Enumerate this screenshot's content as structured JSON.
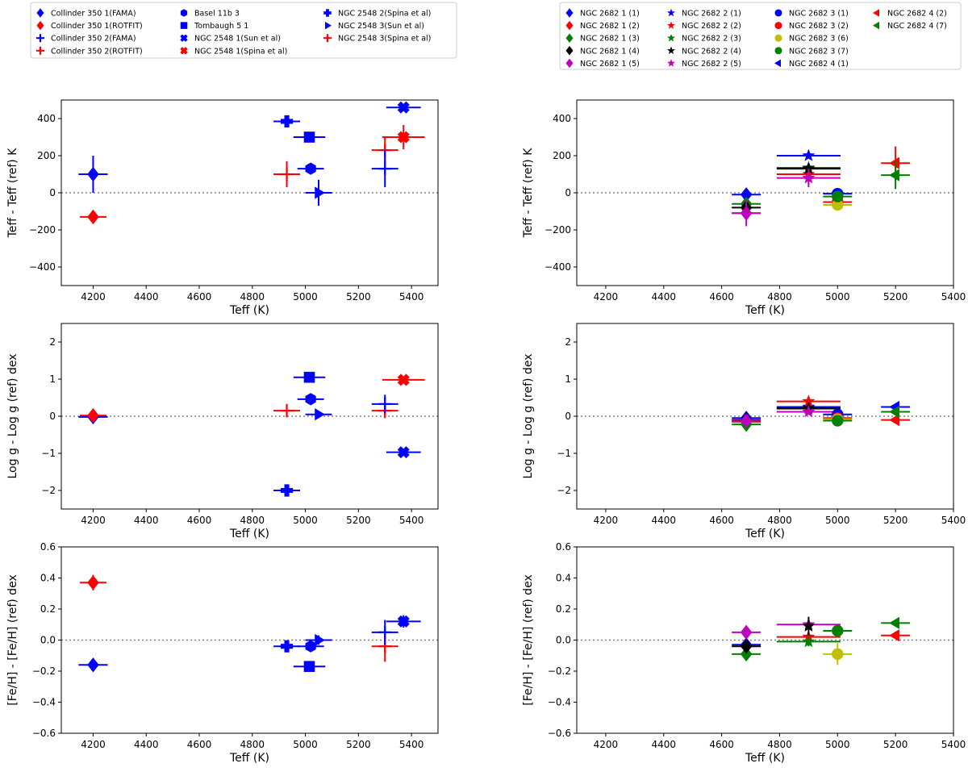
{
  "figure": {
    "xlabel": "Teff (K)",
    "colors": {
      "blue": "#0000ff",
      "red": "#ff0000",
      "green": "#008000",
      "black": "#000000",
      "magenta": "#bf00bf",
      "yellow": "#bfbf00",
      "zero_line": "#808080"
    }
  },
  "legends": {
    "left": [
      {
        "label": "Collinder 350 1(FAMA)",
        "marker": "diamond",
        "color": "blue"
      },
      {
        "label": "Collinder 350 1(ROTFIT)",
        "marker": "diamond",
        "color": "red"
      },
      {
        "label": "Collinder 350 2(FAMA)",
        "marker": "tri_up",
        "color": "blue"
      },
      {
        "label": "Collinder 350 2(ROTFIT)",
        "marker": "tri_up",
        "color": "red"
      },
      {
        "label": "Basel 11b 3",
        "marker": "hexagon",
        "color": "blue"
      },
      {
        "label": "Tombaugh 5 1",
        "marker": "square",
        "color": "blue"
      },
      {
        "label": "NGC 2548 1(Sun et al)",
        "marker": "xfilled",
        "color": "blue"
      },
      {
        "label": "NGC 2548 1(Spina et al)",
        "marker": "xfilled",
        "color": "red"
      },
      {
        "label": "NGC 2548 2(Spina et al)",
        "marker": "plusfilled",
        "color": "blue"
      },
      {
        "label": "NGC 2548 3(Sun et al)",
        "marker": "tri_right",
        "color": "blue"
      },
      {
        "label": "NGC 2548 3(Spina et al)",
        "marker": "tri_up",
        "color": "red"
      }
    ],
    "right": [
      {
        "label": "NGC 2682 1 (1)",
        "marker": "diamond",
        "color": "blue"
      },
      {
        "label": "NGC 2682 1 (2)",
        "marker": "diamond",
        "color": "red"
      },
      {
        "label": "NGC 2682 1 (3)",
        "marker": "diamond",
        "color": "green"
      },
      {
        "label": "NGC 2682 1 (4)",
        "marker": "diamond",
        "color": "black"
      },
      {
        "label": "NGC 2682 1 (5)",
        "marker": "diamond",
        "color": "magenta"
      },
      {
        "label": "NGC 2682 2 (1)",
        "marker": "star",
        "color": "blue"
      },
      {
        "label": "NGC 2682 2 (2)",
        "marker": "star",
        "color": "red"
      },
      {
        "label": "NGC 2682 2 (3)",
        "marker": "star",
        "color": "green"
      },
      {
        "label": "NGC 2682 2 (4)",
        "marker": "star",
        "color": "black"
      },
      {
        "label": "NGC 2682 2 (5)",
        "marker": "star",
        "color": "magenta"
      },
      {
        "label": "NGC 2682 3 (1)",
        "marker": "circle",
        "color": "blue"
      },
      {
        "label": "NGC 2682 3 (2)",
        "marker": "circle",
        "color": "red"
      },
      {
        "label": "NGC 2682 3 (6)",
        "marker": "circle",
        "color": "yellow"
      },
      {
        "label": "NGC 2682 3 (7)",
        "marker": "circle",
        "color": "green"
      },
      {
        "label": "NGC 2682 4 (1)",
        "marker": "tri_left",
        "color": "blue"
      },
      {
        "label": "NGC 2682 4 (2)",
        "marker": "tri_left",
        "color": "red"
      },
      {
        "label": "NGC 2682 4 (7)",
        "marker": "tri_left",
        "color": "green"
      }
    ]
  },
  "chart_data": [
    {
      "type": "scatter",
      "panel": "teff-left",
      "title": "",
      "xlabel": "Teff (K)",
      "ylabel": "Teff - Teff (ref) K",
      "xlim": [
        4080,
        5500
      ],
      "ylim": [
        -500,
        500
      ],
      "xticks": [
        "4200",
        "4400",
        "4600",
        "4800",
        "5000",
        "5200",
        "5400"
      ],
      "yticks": [
        "−400",
        "−200",
        "0",
        "200",
        "400"
      ],
      "ytick_values": [
        -400,
        -200,
        0,
        200,
        400
      ],
      "points": [
        {
          "x": 4200,
          "y": 100,
          "xerr": 55,
          "yerr": 100,
          "marker": "diamond",
          "color": "blue"
        },
        {
          "x": 4200,
          "y": -130,
          "xerr": 50,
          "yerr": 30,
          "marker": "diamond",
          "color": "red"
        },
        {
          "x": 4930,
          "y": 385,
          "xerr": 50,
          "yerr": 20,
          "marker": "plusfilled",
          "color": "blue"
        },
        {
          "x": 4930,
          "y": 100,
          "xerr": 50,
          "yerr": 70,
          "marker": "tri_up",
          "color": "red"
        },
        {
          "x": 5020,
          "y": 130,
          "xerr": 50,
          "yerr": 0,
          "marker": "hexagon",
          "color": "blue"
        },
        {
          "x": 5015,
          "y": 300,
          "xerr": 60,
          "yerr": 0,
          "marker": "square",
          "color": "blue"
        },
        {
          "x": 5050,
          "y": 0,
          "xerr": 50,
          "yerr": 70,
          "marker": "tri_right",
          "color": "blue"
        },
        {
          "x": 5300,
          "y": 230,
          "xerr": 50,
          "yerr": 70,
          "marker": "tri_up",
          "color": "red"
        },
        {
          "x": 5300,
          "y": 130,
          "xerr": 50,
          "yerr": 100,
          "marker": "tri_up",
          "color": "blue"
        },
        {
          "x": 5370,
          "y": 460,
          "xerr": 65,
          "yerr": 0,
          "marker": "xfilled",
          "color": "blue"
        },
        {
          "x": 5370,
          "y": 300,
          "xerr": 80,
          "yerr": 65,
          "marker": "xfilled",
          "color": "red"
        }
      ]
    },
    {
      "type": "scatter",
      "panel": "logg-left",
      "title": "",
      "xlabel": "Teff (K)",
      "ylabel": "Log g - Log g (ref) dex",
      "xlim": [
        4080,
        5500
      ],
      "ylim": [
        -2.5,
        2.5
      ],
      "xticks": [
        "4200",
        "4400",
        "4600",
        "4800",
        "5000",
        "5200",
        "5400"
      ],
      "yticks": [
        "−2",
        "−1",
        "0",
        "1",
        "2"
      ],
      "ytick_values": [
        -2,
        -1,
        0,
        1,
        2
      ],
      "points": [
        {
          "x": 4200,
          "y": -0.02,
          "xerr": 55,
          "yerr": 0.12,
          "marker": "diamond",
          "color": "blue"
        },
        {
          "x": 4200,
          "y": 0.02,
          "xerr": 50,
          "yerr": 0.15,
          "marker": "diamond",
          "color": "red"
        },
        {
          "x": 4930,
          "y": -2.0,
          "xerr": 50,
          "yerr": 0.05,
          "marker": "plusfilled",
          "color": "blue"
        },
        {
          "x": 4930,
          "y": 0.15,
          "xerr": 50,
          "yerr": 0.18,
          "marker": "tri_up",
          "color": "red"
        },
        {
          "x": 5020,
          "y": 0.46,
          "xerr": 50,
          "yerr": 0,
          "marker": "hexagon",
          "color": "blue"
        },
        {
          "x": 5015,
          "y": 1.05,
          "xerr": 60,
          "yerr": 0,
          "marker": "square",
          "color": "blue"
        },
        {
          "x": 5050,
          "y": 0.05,
          "xerr": 50,
          "yerr": 0.05,
          "marker": "tri_right",
          "color": "blue"
        },
        {
          "x": 5300,
          "y": 0.15,
          "xerr": 50,
          "yerr": 0.2,
          "marker": "tri_up",
          "color": "red"
        },
        {
          "x": 5300,
          "y": 0.33,
          "xerr": 50,
          "yerr": 0.25,
          "marker": "tri_up",
          "color": "blue"
        },
        {
          "x": 5370,
          "y": -0.97,
          "xerr": 65,
          "yerr": 0.05,
          "marker": "xfilled",
          "color": "blue"
        },
        {
          "x": 5370,
          "y": 0.98,
          "xerr": 80,
          "yerr": 0.08,
          "marker": "xfilled",
          "color": "red"
        }
      ]
    },
    {
      "type": "scatter",
      "panel": "feh-left",
      "title": "",
      "xlabel": "Teff (K)",
      "ylabel": "[Fe/H] - [Fe/H] (ref) dex",
      "xlim": [
        4080,
        5500
      ],
      "ylim": [
        -0.6,
        0.6
      ],
      "xticks": [
        "4200",
        "4400",
        "4600",
        "4800",
        "5000",
        "5200",
        "5400"
      ],
      "yticks": [
        "−0.6",
        "−0.4",
        "−0.2",
        "0.0",
        "0.2",
        "0.4",
        "0.6"
      ],
      "ytick_values": [
        -0.6,
        -0.4,
        -0.2,
        0,
        0.2,
        0.4,
        0.6
      ],
      "points": [
        {
          "x": 4200,
          "y": -0.16,
          "xerr": 55,
          "yerr": 0.02,
          "marker": "diamond",
          "color": "blue"
        },
        {
          "x": 4200,
          "y": 0.37,
          "xerr": 50,
          "yerr": 0.05,
          "marker": "diamond",
          "color": "red"
        },
        {
          "x": 4930,
          "y": -0.04,
          "xerr": 50,
          "yerr": 0.03,
          "marker": "plusfilled",
          "color": "blue"
        },
        {
          "x": 5020,
          "y": -0.04,
          "xerr": 50,
          "yerr": 0,
          "marker": "hexagon",
          "color": "blue"
        },
        {
          "x": 5015,
          "y": -0.17,
          "xerr": 60,
          "yerr": 0,
          "marker": "square",
          "color": "blue"
        },
        {
          "x": 5050,
          "y": 0.0,
          "xerr": 50,
          "yerr": 0.03,
          "marker": "tri_right",
          "color": "blue"
        },
        {
          "x": 5300,
          "y": -0.04,
          "xerr": 50,
          "yerr": 0.1,
          "marker": "tri_up",
          "color": "red"
        },
        {
          "x": 5300,
          "y": 0.05,
          "xerr": 50,
          "yerr": 0.08,
          "marker": "tri_up",
          "color": "blue"
        },
        {
          "x": 5370,
          "y": 0.12,
          "xerr": 65,
          "yerr": 0.04,
          "marker": "xfilled",
          "color": "blue"
        }
      ]
    },
    {
      "type": "scatter",
      "panel": "teff-right",
      "title": "",
      "xlabel": "Teff (K)",
      "ylabel": "Teff - Teff (ref) K",
      "xlim": [
        4100,
        5400
      ],
      "ylim": [
        -500,
        500
      ],
      "xticks": [
        "4200",
        "4400",
        "4600",
        "4800",
        "5000",
        "5200",
        "5400"
      ],
      "yticks": [
        "−400",
        "−200",
        "0",
        "200",
        "400"
      ],
      "ytick_values": [
        -400,
        -200,
        0,
        200,
        400
      ],
      "points": [
        {
          "x": 4685,
          "y": -10,
          "xerr": 50,
          "yerr": 0,
          "marker": "diamond",
          "color": "blue"
        },
        {
          "x": 4685,
          "y": -110,
          "xerr": 50,
          "yerr": 0,
          "marker": "diamond",
          "color": "red"
        },
        {
          "x": 4685,
          "y": -60,
          "xerr": 50,
          "yerr": 0,
          "marker": "diamond",
          "color": "green"
        },
        {
          "x": 4685,
          "y": -80,
          "xerr": 50,
          "yerr": 0,
          "marker": "diamond",
          "color": "black"
        },
        {
          "x": 4685,
          "y": -110,
          "xerr": 50,
          "yerr": 70,
          "marker": "diamond",
          "color": "magenta"
        },
        {
          "x": 4900,
          "y": 200,
          "xerr": 110,
          "yerr": 0,
          "marker": "star",
          "color": "blue"
        },
        {
          "x": 4900,
          "y": 100,
          "xerr": 110,
          "yerr": 50,
          "marker": "star",
          "color": "red"
        },
        {
          "x": 4900,
          "y": 135,
          "xerr": 110,
          "yerr": 0,
          "marker": "star",
          "color": "green"
        },
        {
          "x": 4900,
          "y": 130,
          "xerr": 110,
          "yerr": 0,
          "marker": "star",
          "color": "black"
        },
        {
          "x": 4900,
          "y": 80,
          "xerr": 110,
          "yerr": 50,
          "marker": "star",
          "color": "magenta"
        },
        {
          "x": 5000,
          "y": -5,
          "xerr": 50,
          "yerr": 0,
          "marker": "circle",
          "color": "blue"
        },
        {
          "x": 5000,
          "y": -50,
          "xerr": 50,
          "yerr": 0,
          "marker": "circle",
          "color": "red"
        },
        {
          "x": 5000,
          "y": -65,
          "xerr": 50,
          "yerr": 0,
          "marker": "circle",
          "color": "yellow"
        },
        {
          "x": 5000,
          "y": -20,
          "xerr": 50,
          "yerr": 0,
          "marker": "circle",
          "color": "green"
        },
        {
          "x": 5200,
          "y": 160,
          "xerr": 50,
          "yerr": 90,
          "marker": "tri_left",
          "color": "red"
        },
        {
          "x": 5200,
          "y": 95,
          "xerr": 50,
          "yerr": 75,
          "marker": "tri_left",
          "color": "green"
        }
      ]
    },
    {
      "type": "scatter",
      "panel": "logg-right",
      "title": "",
      "xlabel": "Teff (K)",
      "ylabel": "Log g - Log g (ref) dex",
      "xlim": [
        4100,
        5400
      ],
      "ylim": [
        -2.5,
        2.5
      ],
      "xticks": [
        "4200",
        "4400",
        "4600",
        "4800",
        "5000",
        "5200",
        "5400"
      ],
      "yticks": [
        "−2",
        "−1",
        "0",
        "1",
        "2"
      ],
      "ytick_values": [
        -2,
        -1,
        0,
        1,
        2
      ],
      "points": [
        {
          "x": 4685,
          "y": -0.05,
          "xerr": 50,
          "yerr": 0,
          "marker": "diamond",
          "color": "blue"
        },
        {
          "x": 4685,
          "y": -0.15,
          "xerr": 50,
          "yerr": 0,
          "marker": "diamond",
          "color": "red"
        },
        {
          "x": 4685,
          "y": -0.22,
          "xerr": 50,
          "yerr": 0,
          "marker": "diamond",
          "color": "green"
        },
        {
          "x": 4685,
          "y": -0.1,
          "xerr": 50,
          "yerr": 0,
          "marker": "diamond",
          "color": "black"
        },
        {
          "x": 4685,
          "y": -0.12,
          "xerr": 50,
          "yerr": 0,
          "marker": "diamond",
          "color": "magenta"
        },
        {
          "x": 4900,
          "y": 0.25,
          "xerr": 110,
          "yerr": 0,
          "marker": "star",
          "color": "blue"
        },
        {
          "x": 4900,
          "y": 0.4,
          "xerr": 110,
          "yerr": 0,
          "marker": "star",
          "color": "red"
        },
        {
          "x": 4900,
          "y": 0.2,
          "xerr": 110,
          "yerr": 0,
          "marker": "star",
          "color": "green"
        },
        {
          "x": 4900,
          "y": 0.22,
          "xerr": 110,
          "yerr": 0,
          "marker": "star",
          "color": "black"
        },
        {
          "x": 4900,
          "y": 0.12,
          "xerr": 110,
          "yerr": 0,
          "marker": "star",
          "color": "magenta"
        },
        {
          "x": 5000,
          "y": 0.05,
          "xerr": 50,
          "yerr": 0,
          "marker": "circle",
          "color": "blue"
        },
        {
          "x": 5000,
          "y": -0.05,
          "xerr": 50,
          "yerr": 0,
          "marker": "circle",
          "color": "red"
        },
        {
          "x": 5000,
          "y": -0.08,
          "xerr": 50,
          "yerr": 0,
          "marker": "circle",
          "color": "yellow"
        },
        {
          "x": 5000,
          "y": -0.12,
          "xerr": 50,
          "yerr": 0,
          "marker": "circle",
          "color": "green"
        },
        {
          "x": 5200,
          "y": 0.25,
          "xerr": 50,
          "yerr": 0,
          "marker": "tri_left",
          "color": "blue"
        },
        {
          "x": 5200,
          "y": -0.1,
          "xerr": 50,
          "yerr": 0,
          "marker": "tri_left",
          "color": "red"
        },
        {
          "x": 5200,
          "y": 0.12,
          "xerr": 50,
          "yerr": 0,
          "marker": "tri_left",
          "color": "green"
        }
      ]
    },
    {
      "type": "scatter",
      "panel": "feh-right",
      "title": "",
      "xlabel": "Teff (K)",
      "ylabel": "[Fe/H] - [Fe/H] (ref) dex",
      "xlim": [
        4100,
        5400
      ],
      "ylim": [
        -0.6,
        0.6
      ],
      "xticks": [
        "4200",
        "4400",
        "4600",
        "4800",
        "5000",
        "5200",
        "5400"
      ],
      "yticks": [
        "−0.6",
        "−0.4",
        "−0.2",
        "0.0",
        "0.2",
        "0.4",
        "0.6"
      ],
      "ytick_values": [
        -0.6,
        -0.4,
        -0.2,
        0,
        0.2,
        0.4,
        0.6
      ],
      "points": [
        {
          "x": 4685,
          "y": -0.03,
          "xerr": 50,
          "yerr": 0,
          "marker": "diamond",
          "color": "blue"
        },
        {
          "x": 4685,
          "y": -0.09,
          "xerr": 50,
          "yerr": 0,
          "marker": "diamond",
          "color": "green"
        },
        {
          "x": 4685,
          "y": -0.04,
          "xerr": 50,
          "yerr": 0,
          "marker": "diamond",
          "color": "black"
        },
        {
          "x": 4685,
          "y": 0.05,
          "xerr": 50,
          "yerr": 0,
          "marker": "diamond",
          "color": "magenta"
        },
        {
          "x": 4900,
          "y": 0.1,
          "xerr": 110,
          "yerr": 0,
          "marker": "star",
          "color": "magenta"
        },
        {
          "x": 4900,
          "y": 0.02,
          "xerr": 110,
          "yerr": 0.03,
          "marker": "star",
          "color": "red"
        },
        {
          "x": 4900,
          "y": -0.01,
          "xerr": 110,
          "yerr": 0.03,
          "marker": "star",
          "color": "green"
        },
        {
          "x": 4900,
          "y": 0.09,
          "xerr": 0,
          "yerr": 0.06,
          "marker": "star",
          "color": "black"
        },
        {
          "x": 5000,
          "y": 0.06,
          "xerr": 50,
          "yerr": 0,
          "marker": "circle",
          "color": "green"
        },
        {
          "x": 5000,
          "y": -0.09,
          "xerr": 50,
          "yerr": 0.07,
          "marker": "circle",
          "color": "yellow"
        },
        {
          "x": 5200,
          "y": 0.11,
          "xerr": 50,
          "yerr": 0,
          "marker": "tri_left",
          "color": "green"
        },
        {
          "x": 5200,
          "y": 0.03,
          "xerr": 50,
          "yerr": 0,
          "marker": "tri_left",
          "color": "red"
        }
      ]
    }
  ]
}
